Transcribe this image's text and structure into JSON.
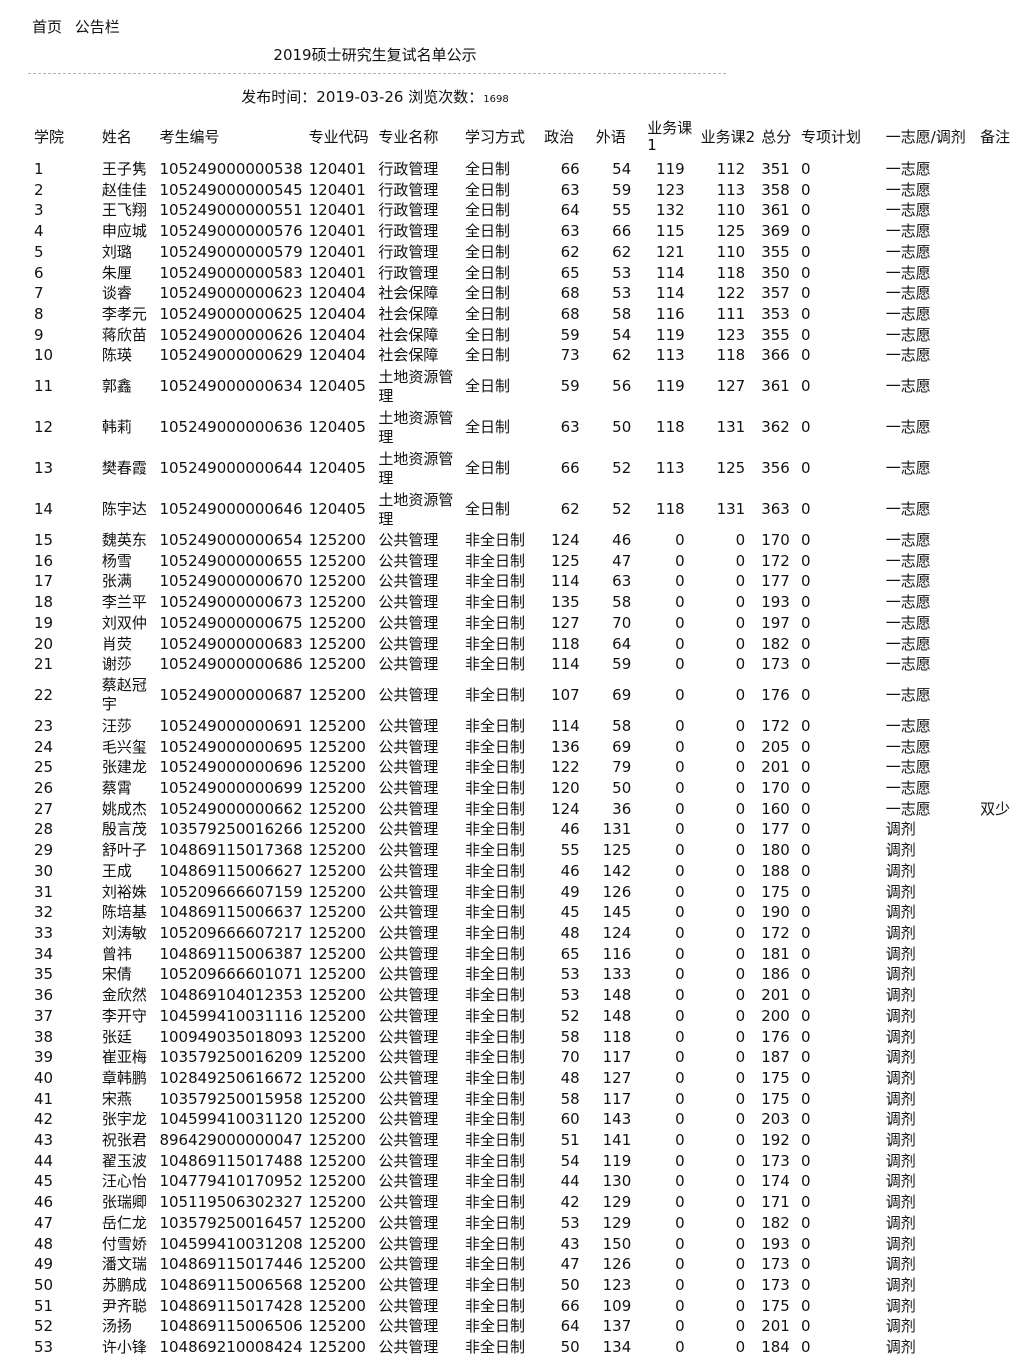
{
  "nav": {
    "home": "首页",
    "notice": "公告栏"
  },
  "title": "2019硕士研究生复试名单公示",
  "meta": {
    "publish_label": "发布时间：",
    "publish_date": "2019-03-26",
    "views_label": "浏览次数：",
    "views": "1698"
  },
  "table": {
    "headers": [
      "学院",
      "姓名",
      "考生编号",
      "专业代码",
      "专业名称",
      "学习方式",
      "政治",
      "外语",
      "业务课1",
      "业务课2",
      "总分",
      "专项计划",
      "一志愿/调剂",
      "备注"
    ],
    "rows": [
      [
        "1",
        "王子隽",
        "105249000000538",
        "120401",
        "行政管理",
        "全日制",
        "66",
        "54",
        "119",
        "112",
        "351",
        "0",
        "一志愿",
        ""
      ],
      [
        "2",
        "赵佳佳",
        "105249000000545",
        "120401",
        "行政管理",
        "全日制",
        "63",
        "59",
        "123",
        "113",
        "358",
        "0",
        "一志愿",
        ""
      ],
      [
        "3",
        "王飞翔",
        "105249000000551",
        "120401",
        "行政管理",
        "全日制",
        "64",
        "55",
        "132",
        "110",
        "361",
        "0",
        "一志愿",
        ""
      ],
      [
        "4",
        "申应城",
        "105249000000576",
        "120401",
        "行政管理",
        "全日制",
        "63",
        "66",
        "115",
        "125",
        "369",
        "0",
        "一志愿",
        ""
      ],
      [
        "5",
        "刘璐",
        "105249000000579",
        "120401",
        "行政管理",
        "全日制",
        "62",
        "62",
        "121",
        "110",
        "355",
        "0",
        "一志愿",
        ""
      ],
      [
        "6",
        "朱厘",
        "105249000000583",
        "120401",
        "行政管理",
        "全日制",
        "65",
        "53",
        "114",
        "118",
        "350",
        "0",
        "一志愿",
        ""
      ],
      [
        "7",
        "谈睿",
        "105249000000623",
        "120404",
        "社会保障",
        "全日制",
        "68",
        "53",
        "114",
        "122",
        "357",
        "0",
        "一志愿",
        ""
      ],
      [
        "8",
        "李孝元",
        "105249000000625",
        "120404",
        "社会保障",
        "全日制",
        "68",
        "58",
        "116",
        "111",
        "353",
        "0",
        "一志愿",
        ""
      ],
      [
        "9",
        "蒋欣苗",
        "105249000000626",
        "120404",
        "社会保障",
        "全日制",
        "59",
        "54",
        "119",
        "123",
        "355",
        "0",
        "一志愿",
        ""
      ],
      [
        "10",
        "陈瑛",
        "105249000000629",
        "120404",
        "社会保障",
        "全日制",
        "73",
        "62",
        "113",
        "118",
        "366",
        "0",
        "一志愿",
        ""
      ],
      [
        "11",
        "郭鑫",
        "105249000000634",
        "120405",
        "土地资源管理",
        "全日制",
        "59",
        "56",
        "119",
        "127",
        "361",
        "0",
        "一志愿",
        ""
      ],
      [
        "12",
        "韩莉",
        "105249000000636",
        "120405",
        "土地资源管理",
        "全日制",
        "63",
        "50",
        "118",
        "131",
        "362",
        "0",
        "一志愿",
        ""
      ],
      [
        "13",
        "樊春霞",
        "105249000000644",
        "120405",
        "土地资源管理",
        "全日制",
        "66",
        "52",
        "113",
        "125",
        "356",
        "0",
        "一志愿",
        ""
      ],
      [
        "14",
        "陈宇达",
        "105249000000646",
        "120405",
        "土地资源管理",
        "全日制",
        "62",
        "52",
        "118",
        "131",
        "363",
        "0",
        "一志愿",
        ""
      ],
      [
        "15",
        "魏英东",
        "105249000000654",
        "125200",
        "公共管理",
        "非全日制",
        "124",
        "46",
        "0",
        "0",
        "170",
        "0",
        "一志愿",
        ""
      ],
      [
        "16",
        "杨雪",
        "105249000000655",
        "125200",
        "公共管理",
        "非全日制",
        "125",
        "47",
        "0",
        "0",
        "172",
        "0",
        "一志愿",
        ""
      ],
      [
        "17",
        "张满",
        "105249000000670",
        "125200",
        "公共管理",
        "非全日制",
        "114",
        "63",
        "0",
        "0",
        "177",
        "0",
        "一志愿",
        ""
      ],
      [
        "18",
        "李兰平",
        "105249000000673",
        "125200",
        "公共管理",
        "非全日制",
        "135",
        "58",
        "0",
        "0",
        "193",
        "0",
        "一志愿",
        ""
      ],
      [
        "19",
        "刘双仲",
        "105249000000675",
        "125200",
        "公共管理",
        "非全日制",
        "127",
        "70",
        "0",
        "0",
        "197",
        "0",
        "一志愿",
        ""
      ],
      [
        "20",
        "肖荧",
        "105249000000683",
        "125200",
        "公共管理",
        "非全日制",
        "118",
        "64",
        "0",
        "0",
        "182",
        "0",
        "一志愿",
        ""
      ],
      [
        "21",
        "谢莎",
        "105249000000686",
        "125200",
        "公共管理",
        "非全日制",
        "114",
        "59",
        "0",
        "0",
        "173",
        "0",
        "一志愿",
        ""
      ],
      [
        "22",
        "蔡赵冠宇",
        "105249000000687",
        "125200",
        "公共管理",
        "非全日制",
        "107",
        "69",
        "0",
        "0",
        "176",
        "0",
        "一志愿",
        ""
      ],
      [
        "23",
        "汪莎",
        "105249000000691",
        "125200",
        "公共管理",
        "非全日制",
        "114",
        "58",
        "0",
        "0",
        "172",
        "0",
        "一志愿",
        ""
      ],
      [
        "24",
        "毛兴玺",
        "105249000000695",
        "125200",
        "公共管理",
        "非全日制",
        "136",
        "69",
        "0",
        "0",
        "205",
        "0",
        "一志愿",
        ""
      ],
      [
        "25",
        "张建龙",
        "105249000000696",
        "125200",
        "公共管理",
        "非全日制",
        "122",
        "79",
        "0",
        "0",
        "201",
        "0",
        "一志愿",
        ""
      ],
      [
        "26",
        "蔡霄",
        "105249000000699",
        "125200",
        "公共管理",
        "非全日制",
        "120",
        "50",
        "0",
        "0",
        "170",
        "0",
        "一志愿",
        ""
      ],
      [
        "27",
        "姚成杰",
        "105249000000662",
        "125200",
        "公共管理",
        "非全日制",
        "124",
        "36",
        "0",
        "0",
        "160",
        "0",
        "一志愿",
        "双少"
      ],
      [
        "28",
        "殷言茂",
        "103579250016266",
        "125200",
        "公共管理",
        "非全日制",
        "46",
        "131",
        "0",
        "0",
        "177",
        "0",
        "调剂",
        ""
      ],
      [
        "29",
        "舒叶子",
        "104869115017368",
        "125200",
        "公共管理",
        "非全日制",
        "55",
        "125",
        "0",
        "0",
        "180",
        "0",
        "调剂",
        ""
      ],
      [
        "30",
        "王成",
        "104869115006627",
        "125200",
        "公共管理",
        "非全日制",
        "46",
        "142",
        "0",
        "0",
        "188",
        "0",
        "调剂",
        ""
      ],
      [
        "31",
        "刘裕姝",
        "105209666607159",
        "125200",
        "公共管理",
        "非全日制",
        "49",
        "126",
        "0",
        "0",
        "175",
        "0",
        "调剂",
        ""
      ],
      [
        "32",
        "陈培基",
        "104869115006637",
        "125200",
        "公共管理",
        "非全日制",
        "45",
        "145",
        "0",
        "0",
        "190",
        "0",
        "调剂",
        ""
      ],
      [
        "33",
        "刘涛敏",
        "105209666607217",
        "125200",
        "公共管理",
        "非全日制",
        "48",
        "124",
        "0",
        "0",
        "172",
        "0",
        "调剂",
        ""
      ],
      [
        "34",
        "曾祎",
        "104869115006387",
        "125200",
        "公共管理",
        "非全日制",
        "65",
        "116",
        "0",
        "0",
        "181",
        "0",
        "调剂",
        ""
      ],
      [
        "35",
        "宋倩",
        "105209666601071",
        "125200",
        "公共管理",
        "非全日制",
        "53",
        "133",
        "0",
        "0",
        "186",
        "0",
        "调剂",
        ""
      ],
      [
        "36",
        "金欣然",
        "104869104012353",
        "125200",
        "公共管理",
        "非全日制",
        "53",
        "148",
        "0",
        "0",
        "201",
        "0",
        "调剂",
        ""
      ],
      [
        "37",
        "李开守",
        "104599410031116",
        "125200",
        "公共管理",
        "非全日制",
        "52",
        "148",
        "0",
        "0",
        "200",
        "0",
        "调剂",
        ""
      ],
      [
        "38",
        "张廷",
        "100949035018093",
        "125200",
        "公共管理",
        "非全日制",
        "58",
        "118",
        "0",
        "0",
        "176",
        "0",
        "调剂",
        ""
      ],
      [
        "39",
        "崔亚梅",
        "103579250016209",
        "125200",
        "公共管理",
        "非全日制",
        "70",
        "117",
        "0",
        "0",
        "187",
        "0",
        "调剂",
        ""
      ],
      [
        "40",
        "章韩鹏",
        "102849250616672",
        "125200",
        "公共管理",
        "非全日制",
        "48",
        "127",
        "0",
        "0",
        "175",
        "0",
        "调剂",
        ""
      ],
      [
        "41",
        "宋燕",
        "103579250015958",
        "125200",
        "公共管理",
        "非全日制",
        "58",
        "117",
        "0",
        "0",
        "175",
        "0",
        "调剂",
        ""
      ],
      [
        "42",
        "张宇龙",
        "104599410031120",
        "125200",
        "公共管理",
        "非全日制",
        "60",
        "143",
        "0",
        "0",
        "203",
        "0",
        "调剂",
        ""
      ],
      [
        "43",
        "祝张君",
        "896429000000047",
        "125200",
        "公共管理",
        "非全日制",
        "51",
        "141",
        "0",
        "0",
        "192",
        "0",
        "调剂",
        ""
      ],
      [
        "44",
        "翟玉波",
        "104869115017488",
        "125200",
        "公共管理",
        "非全日制",
        "54",
        "119",
        "0",
        "0",
        "173",
        "0",
        "调剂",
        ""
      ],
      [
        "45",
        "汪心怡",
        "104779410170952",
        "125200",
        "公共管理",
        "非全日制",
        "44",
        "130",
        "0",
        "0",
        "174",
        "0",
        "调剂",
        ""
      ],
      [
        "46",
        "张瑞卿",
        "105119506302327",
        "125200",
        "公共管理",
        "非全日制",
        "42",
        "129",
        "0",
        "0",
        "171",
        "0",
        "调剂",
        ""
      ],
      [
        "47",
        "岳仁龙",
        "103579250016457",
        "125200",
        "公共管理",
        "非全日制",
        "53",
        "129",
        "0",
        "0",
        "182",
        "0",
        "调剂",
        ""
      ],
      [
        "48",
        "付雪娇",
        "104599410031208",
        "125200",
        "公共管理",
        "非全日制",
        "43",
        "150",
        "0",
        "0",
        "193",
        "0",
        "调剂",
        ""
      ],
      [
        "49",
        "潘文瑞",
        "104869115017446",
        "125200",
        "公共管理",
        "非全日制",
        "47",
        "126",
        "0",
        "0",
        "173",
        "0",
        "调剂",
        ""
      ],
      [
        "50",
        "苏鹏成",
        "104869115006568",
        "125200",
        "公共管理",
        "非全日制",
        "50",
        "123",
        "0",
        "0",
        "173",
        "0",
        "调剂",
        ""
      ],
      [
        "51",
        "尹齐聪",
        "104869115017428",
        "125200",
        "公共管理",
        "非全日制",
        "66",
        "109",
        "0",
        "0",
        "175",
        "0",
        "调剂",
        ""
      ],
      [
        "52",
        "汤扬",
        "104869115006506",
        "125200",
        "公共管理",
        "非全日制",
        "64",
        "137",
        "0",
        "0",
        "201",
        "0",
        "调剂",
        ""
      ],
      [
        "53",
        "许小锋",
        "104869210008424",
        "125200",
        "公共管理",
        "非全日制",
        "50",
        "134",
        "0",
        "0",
        "184",
        "0",
        "调剂",
        ""
      ]
    ]
  }
}
